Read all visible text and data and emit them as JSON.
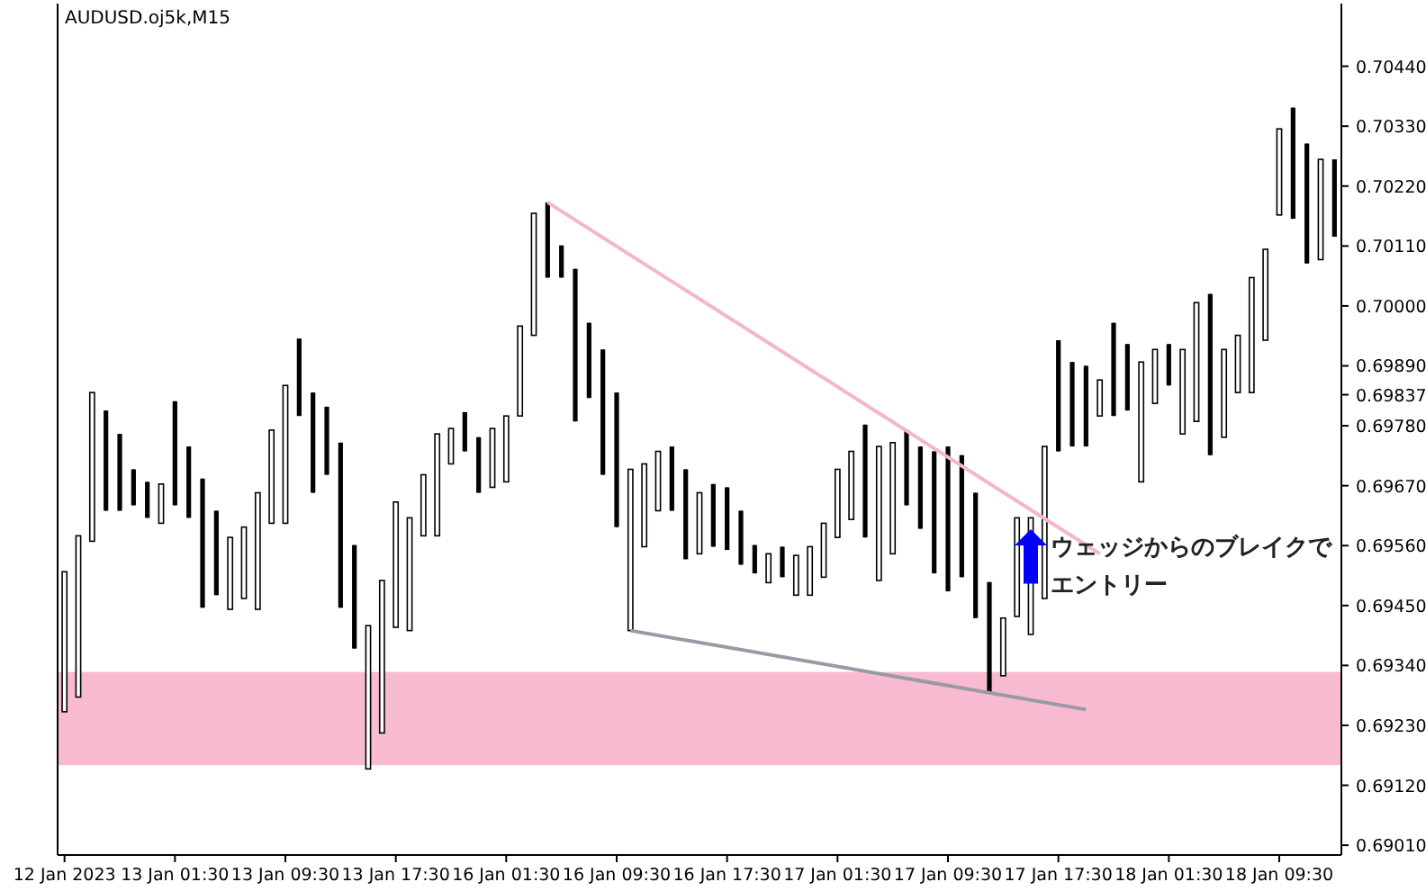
{
  "chart_data": {
    "type": "candlestick",
    "title": "AUDUSD.oj5k,M15",
    "categories": [
      "12 Jan 2023",
      null,
      null,
      null,
      null,
      null,
      null,
      null,
      "13 Jan 01:30",
      null,
      null,
      null,
      null,
      null,
      null,
      null,
      "13 Jan 09:30",
      null,
      null,
      null,
      null,
      null,
      null,
      null,
      "13 Jan 17:30",
      null,
      null,
      null,
      null,
      null,
      null,
      null,
      "16 Jan 01:30",
      null,
      null,
      null,
      null,
      null,
      null,
      null,
      "16 Jan 09:30",
      null,
      null,
      null,
      null,
      null,
      null,
      null,
      "16 Jan 17:30",
      null,
      null,
      null,
      null,
      null,
      null,
      null,
      "17 Jan 01:30",
      null,
      null,
      null,
      null,
      null,
      null,
      null,
      "17 Jan 09:30",
      null,
      null,
      null,
      null,
      null,
      null,
      null,
      "17 Jan 17:30",
      null,
      null,
      null,
      null,
      null,
      null,
      null,
      "18 Jan 01:30",
      null,
      null,
      null,
      null,
      null,
      null,
      null,
      "18 Jan 09:30",
      null,
      null,
      null,
      null
    ],
    "color": "#000000",
    "ohlc": [
      [
        0.69255,
        0.69512,
        0.69255,
        0.69512
      ],
      [
        0.69282,
        0.69578,
        0.69282,
        0.69578
      ],
      [
        0.69568,
        0.69841,
        0.69568,
        0.69841
      ],
      [
        0.69808,
        0.69808,
        0.69624,
        0.69624
      ],
      [
        0.69765,
        0.69765,
        0.69624,
        0.69624
      ],
      [
        0.697,
        0.697,
        0.69634,
        0.69634
      ],
      [
        0.69677,
        0.69677,
        0.69611,
        0.69611
      ],
      [
        0.69601,
        0.69673,
        0.69601,
        0.69673
      ],
      [
        0.69825,
        0.69825,
        0.69634,
        0.69634
      ],
      [
        0.69742,
        0.69742,
        0.69611,
        0.69611
      ],
      [
        0.69683,
        0.69683,
        0.69446,
        0.69446
      ],
      [
        0.69624,
        0.69624,
        0.69469,
        0.69469
      ],
      [
        0.69443,
        0.69575,
        0.69443,
        0.69575
      ],
      [
        0.69463,
        0.69594,
        0.69463,
        0.69594
      ],
      [
        0.69443,
        0.69657,
        0.69443,
        0.69657
      ],
      [
        0.69601,
        0.69772,
        0.69601,
        0.69772
      ],
      [
        0.69601,
        0.69854,
        0.69601,
        0.69854
      ],
      [
        0.6994,
        0.6994,
        0.69798,
        0.69798
      ],
      [
        0.69841,
        0.69841,
        0.69657,
        0.69657
      ],
      [
        0.69815,
        0.69815,
        0.6969,
        0.6969
      ],
      [
        0.69749,
        0.69749,
        0.69446,
        0.69446
      ],
      [
        0.69561,
        0.69561,
        0.69371,
        0.69371
      ],
      [
        0.6915,
        0.69413,
        0.6915,
        0.69413
      ],
      [
        0.69216,
        0.69496,
        0.69216,
        0.69496
      ],
      [
        0.6941,
        0.6964,
        0.6941,
        0.6964
      ],
      [
        0.69404,
        0.69611,
        0.69404,
        0.69611
      ],
      [
        0.69578,
        0.6969,
        0.69578,
        0.6969
      ],
      [
        0.69578,
        0.69765,
        0.69578,
        0.69765
      ],
      [
        0.6971,
        0.69775,
        0.6971,
        0.69775
      ],
      [
        0.69805,
        0.69805,
        0.69733,
        0.69733
      ],
      [
        0.69759,
        0.69759,
        0.69657,
        0.69657
      ],
      [
        0.69667,
        0.69775,
        0.69667,
        0.69775
      ],
      [
        0.69677,
        0.69798,
        0.69677,
        0.69798
      ],
      [
        0.69798,
        0.69963,
        0.69798,
        0.69963
      ],
      [
        0.69946,
        0.7017,
        0.69946,
        0.7017
      ],
      [
        0.7019,
        0.7019,
        0.70052,
        0.70052
      ],
      [
        0.70111,
        0.70111,
        0.70052,
        0.70052
      ],
      [
        0.70068,
        0.70068,
        0.69788,
        0.69788
      ],
      [
        0.69969,
        0.69969,
        0.69831,
        0.69831
      ],
      [
        0.6992,
        0.6992,
        0.6969,
        0.6969
      ],
      [
        0.69841,
        0.69841,
        0.69594,
        0.69594
      ],
      [
        0.69404,
        0.697,
        0.69404,
        0.697
      ],
      [
        0.69558,
        0.6971,
        0.69558,
        0.6971
      ],
      [
        0.69624,
        0.69733,
        0.69624,
        0.69733
      ],
      [
        0.69742,
        0.69742,
        0.69624,
        0.69624
      ],
      [
        0.697,
        0.697,
        0.69535,
        0.69535
      ],
      [
        0.69545,
        0.69657,
        0.69545,
        0.69657
      ],
      [
        0.69673,
        0.69673,
        0.69558,
        0.69558
      ],
      [
        0.69667,
        0.69667,
        0.69552,
        0.69552
      ],
      [
        0.69624,
        0.69624,
        0.69525,
        0.69525
      ],
      [
        0.69561,
        0.69561,
        0.69509,
        0.69509
      ],
      [
        0.69492,
        0.69545,
        0.69492,
        0.69545
      ],
      [
        0.69558,
        0.69558,
        0.69502,
        0.69502
      ],
      [
        0.69469,
        0.69542,
        0.69469,
        0.69542
      ],
      [
        0.69469,
        0.69558,
        0.69469,
        0.69558
      ],
      [
        0.69502,
        0.69601,
        0.69502,
        0.69601
      ],
      [
        0.69575,
        0.697,
        0.69575,
        0.697
      ],
      [
        0.69608,
        0.69733,
        0.69608,
        0.69733
      ],
      [
        0.69782,
        0.69782,
        0.69575,
        0.69575
      ],
      [
        0.69496,
        0.69742,
        0.69496,
        0.69742
      ],
      [
        0.69545,
        0.69749,
        0.69545,
        0.69749
      ],
      [
        0.69772,
        0.69772,
        0.69634,
        0.69634
      ],
      [
        0.69742,
        0.69742,
        0.69591,
        0.69591
      ],
      [
        0.69733,
        0.69733,
        0.69509,
        0.69509
      ],
      [
        0.69742,
        0.69742,
        0.69476,
        0.69476
      ],
      [
        0.69726,
        0.69726,
        0.69502,
        0.69502
      ],
      [
        0.69657,
        0.69657,
        0.69427,
        0.69427
      ],
      [
        0.69493,
        0.69493,
        0.69288,
        0.69288
      ],
      [
        0.69321,
        0.69427,
        0.69321,
        0.69427
      ],
      [
        0.6943,
        0.69611,
        0.6943,
        0.69611
      ],
      [
        0.69397,
        0.69611,
        0.69397,
        0.69611
      ],
      [
        0.69463,
        0.69742,
        0.69463,
        0.69742
      ],
      [
        0.69937,
        0.69937,
        0.69733,
        0.69733
      ],
      [
        0.69897,
        0.69897,
        0.69742,
        0.69742
      ],
      [
        0.6989,
        0.6989,
        0.69742,
        0.69742
      ],
      [
        0.69798,
        0.69864,
        0.69798,
        0.69864
      ],
      [
        0.69969,
        0.69969,
        0.69798,
        0.69798
      ],
      [
        0.6993,
        0.6993,
        0.69808,
        0.69808
      ],
      [
        0.69677,
        0.69897,
        0.69677,
        0.69897
      ],
      [
        0.69821,
        0.6992,
        0.69821,
        0.6992
      ],
      [
        0.6993,
        0.6993,
        0.69854,
        0.69854
      ],
      [
        0.69765,
        0.6992,
        0.69765,
        0.6992
      ],
      [
        0.69788,
        0.70006,
        0.69788,
        0.70006
      ],
      [
        0.70022,
        0.70022,
        0.69726,
        0.69726
      ],
      [
        0.69759,
        0.6992,
        0.69759,
        0.6992
      ],
      [
        0.69841,
        0.69946,
        0.69841,
        0.69946
      ],
      [
        0.69841,
        0.70052,
        0.69841,
        0.70052
      ],
      [
        0.69937,
        0.70104,
        0.69937,
        0.70104
      ],
      [
        0.70167,
        0.70325,
        0.70167,
        0.70325
      ],
      [
        0.70364,
        0.70364,
        0.7016,
        0.7016
      ],
      [
        0.70298,
        0.70298,
        0.70078,
        0.70078
      ],
      [
        0.70085,
        0.70269,
        0.70085,
        0.70269
      ],
      [
        0.70269,
        0.70269,
        0.70127,
        0.70127
      ]
    ],
    "series": [
      {
        "type": "line",
        "color": "#f4b6cb",
        "values": [
          null,
          null,
          null,
          null,
          null,
          null,
          null,
          null,
          null,
          null,
          null,
          null,
          null,
          null,
          null,
          null,
          null,
          null,
          null,
          null,
          null,
          null,
          null,
          null,
          null,
          null,
          null,
          null,
          null,
          null,
          null,
          null,
          null,
          null,
          null,
          0.7019,
          null,
          null,
          null,
          null,
          null,
          null,
          null,
          null,
          null,
          null,
          null,
          null,
          null,
          null,
          null,
          null,
          null,
          null,
          null,
          null,
          null,
          null,
          null,
          null,
          null,
          null,
          null,
          null,
          null,
          null,
          null,
          null,
          null,
          null,
          null,
          null,
          null,
          null,
          null,
          0.69545,
          null,
          null,
          null,
          null,
          null,
          null,
          null,
          null,
          null,
          null,
          null,
          null,
          null,
          null,
          null,
          null,
          null
        ]
      },
      {
        "type": "line",
        "color": "#9a9aa6",
        "values": [
          null,
          null,
          null,
          null,
          null,
          null,
          null,
          null,
          null,
          null,
          null,
          null,
          null,
          null,
          null,
          null,
          null,
          null,
          null,
          null,
          null,
          null,
          null,
          null,
          null,
          null,
          null,
          null,
          null,
          null,
          null,
          null,
          null,
          null,
          null,
          null,
          null,
          null,
          null,
          null,
          null,
          0.69404,
          null,
          null,
          null,
          null,
          null,
          null,
          null,
          null,
          null,
          null,
          null,
          null,
          null,
          null,
          null,
          null,
          null,
          null,
          null,
          null,
          null,
          null,
          null,
          null,
          null,
          null,
          null,
          null,
          null,
          null,
          null,
          null,
          0.69259,
          null,
          null,
          null,
          null,
          null,
          null,
          null,
          null,
          null,
          null,
          null,
          null,
          null,
          null,
          null,
          null,
          null,
          null
        ]
      }
    ],
    "bands": [
      {
        "axis": "y",
        "from": 0.69157,
        "to": 0.69328,
        "color": "#f7bad0"
      }
    ],
    "annotations": [
      "ウェッジからのブレイクでエントリー"
    ],
    "ylim": [
      0.68992,
      0.70555
    ],
    "yticks": [
      {
        "value": 0.6901,
        "label": "0.69010"
      },
      {
        "value": 0.6912,
        "label": "0.69120"
      },
      {
        "value": 0.6923,
        "label": "0.69230"
      },
      {
        "value": 0.6934,
        "label": "0.69340"
      },
      {
        "value": 0.6945,
        "label": "0.69450"
      },
      {
        "value": 0.6956,
        "label": "0.69560"
      },
      {
        "value": 0.6967,
        "label": "0.69670"
      },
      {
        "value": 0.6978,
        "label": "0.69780"
      },
      {
        "value": 0.6989,
        "label": "0.69890"
      },
      {
        "value": 0.69837,
        "label": "0.69837"
      },
      {
        "value": 0.7,
        "label": "0.70000"
      },
      {
        "value": 0.7011,
        "label": "0.70110"
      },
      {
        "value": 0.7022,
        "label": "0.70220"
      },
      {
        "value": 0.7033,
        "label": "0.70330"
      },
      {
        "value": 0.7044,
        "label": "0.70440"
      }
    ]
  }
}
